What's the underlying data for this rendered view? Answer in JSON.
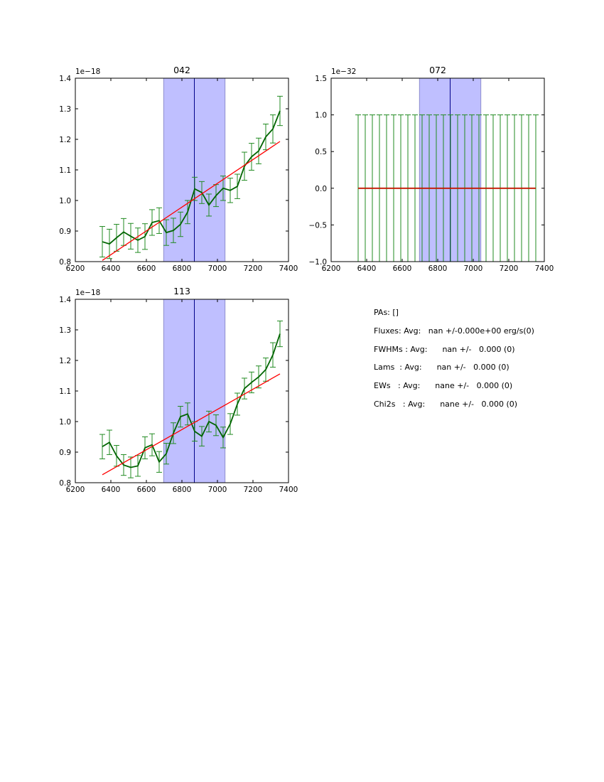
{
  "chart_data": [
    {
      "type": "line",
      "title": "042",
      "offset_text": "1e−18",
      "xlim": [
        6200,
        7400
      ],
      "ylim": [
        0.8,
        1.4
      ],
      "xticks": [
        "6200",
        "6400",
        "6600",
        "6800",
        "7000",
        "7200",
        "7400"
      ],
      "yticks": [
        "0.8",
        "0.9",
        "1.0",
        "1.1",
        "1.2",
        "1.3",
        "1.4"
      ],
      "span": [
        6697,
        7043
      ],
      "vline": 6870,
      "x": [
        6352,
        6392,
        6432,
        6472,
        6512,
        6552,
        6592,
        6632,
        6672,
        6712,
        6752,
        6792,
        6832,
        6872,
        6912,
        6952,
        6992,
        7032,
        7072,
        7112,
        7152,
        7192,
        7232,
        7272,
        7312,
        7352
      ],
      "values": [
        0.865,
        0.858,
        0.878,
        0.897,
        0.883,
        0.87,
        0.882,
        0.928,
        0.934,
        0.895,
        0.902,
        0.922,
        0.962,
        1.038,
        1.026,
        0.985,
        1.016,
        1.04,
        1.033,
        1.046,
        1.112,
        1.143,
        1.162,
        1.208,
        1.234,
        1.293
      ],
      "errors": [
        0.05,
        0.048,
        0.044,
        0.044,
        0.042,
        0.04,
        0.042,
        0.042,
        0.042,
        0.042,
        0.04,
        0.04,
        0.038,
        0.038,
        0.036,
        0.036,
        0.036,
        0.04,
        0.04,
        0.04,
        0.046,
        0.044,
        0.042,
        0.042,
        0.046,
        0.048
      ],
      "fit": {
        "x": [
          6352,
          7352
        ],
        "y": [
          0.804,
          1.193
        ]
      }
    },
    {
      "type": "line",
      "title": "072",
      "offset_text": "1e−32",
      "xlim": [
        6200,
        7400
      ],
      "ylim": [
        -1.0,
        1.5
      ],
      "xticks": [
        "6200",
        "6400",
        "6600",
        "6800",
        "7000",
        "7200",
        "7400"
      ],
      "yticks": [
        "−1.0",
        "−0.5",
        "0.0",
        "0.5",
        "1.0",
        "1.5"
      ],
      "span": [
        6697,
        7043
      ],
      "vline": 6870,
      "x": [
        6352,
        6392,
        6432,
        6472,
        6512,
        6552,
        6592,
        6632,
        6672,
        6712,
        6752,
        6792,
        6832,
        6872,
        6912,
        6952,
        6992,
        7032,
        7072,
        7112,
        7152,
        7192,
        7232,
        7272,
        7312,
        7352
      ],
      "values": [
        0,
        0,
        0,
        0,
        0,
        0,
        0,
        0,
        0,
        0,
        0,
        0,
        0,
        0,
        0,
        0,
        0,
        0,
        0,
        0,
        0,
        0,
        0,
        0,
        0,
        0
      ],
      "errors": [
        1,
        1,
        1,
        1,
        1,
        1,
        1,
        1,
        1,
        1,
        1,
        1,
        1,
        1,
        1,
        1,
        1,
        1,
        1,
        1,
        1,
        1,
        1,
        1,
        1,
        1
      ],
      "fit": {
        "x": [
          6352,
          7352
        ],
        "y": [
          0,
          0
        ]
      }
    },
    {
      "type": "line",
      "title": "113",
      "offset_text": "1e−18",
      "xlim": [
        6200,
        7400
      ],
      "ylim": [
        0.8,
        1.4
      ],
      "xticks": [
        "6200",
        "6400",
        "6600",
        "6800",
        "7000",
        "7200",
        "7400"
      ],
      "yticks": [
        "0.8",
        "0.9",
        "1.0",
        "1.1",
        "1.2",
        "1.3",
        "1.4"
      ],
      "span": [
        6697,
        7043
      ],
      "vline": 6870,
      "x": [
        6352,
        6392,
        6432,
        6472,
        6512,
        6552,
        6592,
        6632,
        6672,
        6712,
        6752,
        6792,
        6832,
        6872,
        6912,
        6952,
        6992,
        7032,
        7072,
        7112,
        7152,
        7192,
        7232,
        7272,
        7312,
        7352
      ],
      "values": [
        0.918,
        0.932,
        0.888,
        0.858,
        0.85,
        0.855,
        0.914,
        0.924,
        0.868,
        0.895,
        0.962,
        1.016,
        1.025,
        0.968,
        0.952,
        1.0,
        0.988,
        0.948,
        0.992,
        1.057,
        1.108,
        1.128,
        1.146,
        1.17,
        1.218,
        1.287
      ],
      "errors": [
        0.04,
        0.04,
        0.034,
        0.034,
        0.034,
        0.034,
        0.036,
        0.036,
        0.034,
        0.034,
        0.034,
        0.034,
        0.036,
        0.032,
        0.032,
        0.034,
        0.034,
        0.034,
        0.034,
        0.036,
        0.034,
        0.034,
        0.036,
        0.038,
        0.04,
        0.042
      ],
      "fit": {
        "x": [
          6352,
          7352
        ],
        "y": [
          0.826,
          1.156
        ]
      }
    }
  ],
  "info": {
    "lines": [
      "PAs: []",
      "Fluxes: Avg:   nan +/-0.000e+00 erg/s(0)",
      "FWHMs : Avg:      nan +/-   0.000 (0)",
      "Lams  : Avg:      nan +/-   0.000 (0)",
      "EWs   : Avg:      nane +/-   0.000 (0)",
      "Chi2s   : Avg:      nane +/-   0.000 (0)"
    ]
  },
  "colors": {
    "data_line": "#006400",
    "error_bar": "#228b22",
    "fit_line": "#ff0000",
    "span_fill": "#bfbfff",
    "span_edge": "#8080c0",
    "center_line": "#00008b"
  }
}
